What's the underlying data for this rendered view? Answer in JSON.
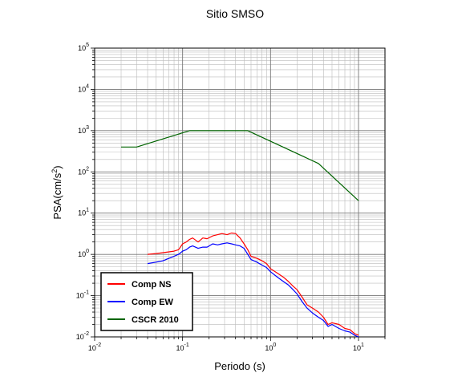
{
  "chart_data": {
    "type": "line",
    "title": "Sitio SMSO",
    "xlabel": "Periodo (s)",
    "ylabel_base": "PSA(cm/s",
    "ylabel_sup": "2",
    "ylabel_end": ")",
    "x_scale": "log",
    "y_scale": "log",
    "xlim": [
      0.01,
      20
    ],
    "ylim": [
      0.01,
      100000
    ],
    "grid": true,
    "legend_position": "bottom-left",
    "x_ticks": [
      {
        "base": "10",
        "exp": "-2",
        "value": 0.01
      },
      {
        "base": "10",
        "exp": "-1",
        "value": 0.1
      },
      {
        "base": "10",
        "exp": "0",
        "value": 1
      },
      {
        "base": "10",
        "exp": "1",
        "value": 10
      }
    ],
    "y_ticks": [
      {
        "base": "10",
        "exp": "-2",
        "value": 0.01
      },
      {
        "base": "10",
        "exp": "-1",
        "value": 0.1
      },
      {
        "base": "10",
        "exp": "0",
        "value": 1
      },
      {
        "base": "10",
        "exp": "1",
        "value": 10
      },
      {
        "base": "10",
        "exp": "2",
        "value": 100
      },
      {
        "base": "10",
        "exp": "3",
        "value": 1000
      },
      {
        "base": "10",
        "exp": "4",
        "value": 10000
      },
      {
        "base": "10",
        "exp": "5",
        "value": 100000
      }
    ],
    "series": [
      {
        "name": "Comp NS",
        "color": "#ff0000",
        "x": [
          0.04,
          0.05,
          0.06,
          0.07,
          0.08,
          0.09,
          0.1,
          0.11,
          0.12,
          0.13,
          0.15,
          0.17,
          0.19,
          0.22,
          0.25,
          0.28,
          0.32,
          0.36,
          0.4,
          0.45,
          0.5,
          0.55,
          0.6,
          0.7,
          0.8,
          0.9,
          1.0,
          1.2,
          1.4,
          1.6,
          1.8,
          2.0,
          2.3,
          2.6,
          3.0,
          3.5,
          4.0,
          4.5,
          5.0,
          6.0,
          7.0,
          8.0,
          9.0,
          10.0
        ],
        "y": [
          1.0,
          1.05,
          1.1,
          1.15,
          1.2,
          1.3,
          1.8,
          2.0,
          2.3,
          2.5,
          2.0,
          2.5,
          2.4,
          2.8,
          3.0,
          3.2,
          3.0,
          3.3,
          3.2,
          2.5,
          1.8,
          1.3,
          0.9,
          0.8,
          0.7,
          0.6,
          0.45,
          0.35,
          0.28,
          0.22,
          0.17,
          0.14,
          0.09,
          0.06,
          0.05,
          0.04,
          0.03,
          0.02,
          0.022,
          0.02,
          0.016,
          0.015,
          0.012,
          0.011
        ]
      },
      {
        "name": "Comp EW",
        "color": "#0000ff",
        "x": [
          0.04,
          0.05,
          0.06,
          0.07,
          0.08,
          0.09,
          0.1,
          0.11,
          0.12,
          0.13,
          0.15,
          0.17,
          0.19,
          0.22,
          0.25,
          0.28,
          0.32,
          0.36,
          0.4,
          0.45,
          0.5,
          0.55,
          0.6,
          0.7,
          0.8,
          0.9,
          1.0,
          1.2,
          1.4,
          1.6,
          1.8,
          2.0,
          2.3,
          2.6,
          3.0,
          3.5,
          4.0,
          4.5,
          5.0,
          6.0,
          7.0,
          8.0,
          9.0,
          10.0
        ],
        "y": [
          0.6,
          0.65,
          0.7,
          0.8,
          0.9,
          1.0,
          1.2,
          1.3,
          1.5,
          1.6,
          1.4,
          1.5,
          1.5,
          1.8,
          1.7,
          1.8,
          1.9,
          1.8,
          1.7,
          1.6,
          1.4,
          1.0,
          0.75,
          0.65,
          0.55,
          0.48,
          0.38,
          0.28,
          0.22,
          0.18,
          0.14,
          0.11,
          0.07,
          0.05,
          0.038,
          0.03,
          0.025,
          0.018,
          0.02,
          0.016,
          0.014,
          0.013,
          0.011,
          0.01
        ]
      },
      {
        "name": "CSCR 2010",
        "color": "#006400",
        "x": [
          0.02,
          0.03,
          0.12,
          0.55,
          3.5,
          10.0
        ],
        "y": [
          400,
          400,
          1000,
          1000,
          160,
          20
        ]
      }
    ]
  }
}
